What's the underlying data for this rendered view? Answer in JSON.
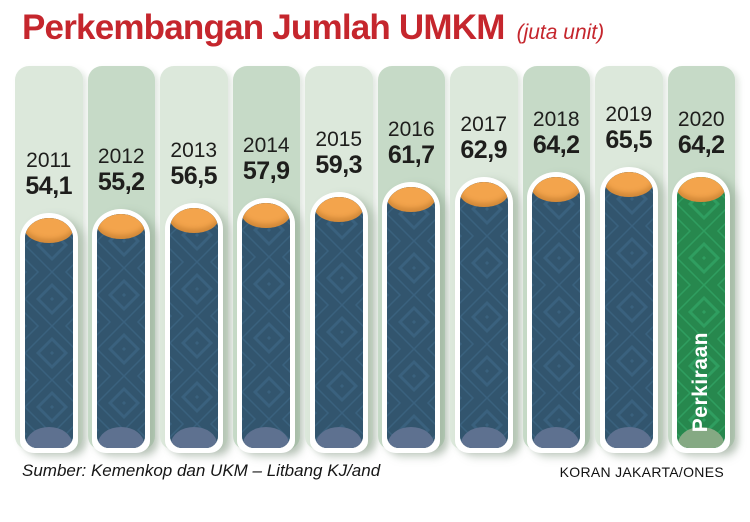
{
  "header": {
    "title": "Perkembangan Jumlah UMKM",
    "unit": "(juta unit)"
  },
  "chart_data": {
    "type": "bar",
    "title": "Perkembangan Jumlah UMKM",
    "unit": "juta unit",
    "categories": [
      "2011",
      "2012",
      "2013",
      "2014",
      "2015",
      "2016",
      "2017",
      "2018",
      "2019",
      "2020"
    ],
    "values": [
      54.1,
      55.2,
      56.5,
      57.9,
      59.3,
      61.7,
      62.9,
      64.2,
      65.5,
      64.2
    ],
    "value_labels": [
      "54,1",
      "55,2",
      "56,5",
      "57,9",
      "59,3",
      "61,7",
      "62,9",
      "64,2",
      "65,5",
      "64,2"
    ],
    "annotations": [
      {
        "category": "2020",
        "label": "Perkiraan"
      }
    ],
    "axis": "none",
    "legend": "none",
    "colors": {
      "title_red": "#c5262d",
      "column_light": "#dce8db",
      "column_dark": "#c6dac7",
      "bar_blue": "#3a617e",
      "bar_blue_pattern": "#32556e",
      "bar_bottom_blue": "#5e7190",
      "bar_green": "#2f9e60",
      "bar_green_pattern": "#27884e",
      "bar_bottom_green": "#85a983",
      "cap_orange": "#f3a44c",
      "label_text": "#1e1e1c"
    }
  },
  "footer": {
    "source": "Sumber: Kemenkop dan UKM – Litbang KJ/and",
    "credit": "KORAN JAKARTA/ONES"
  }
}
